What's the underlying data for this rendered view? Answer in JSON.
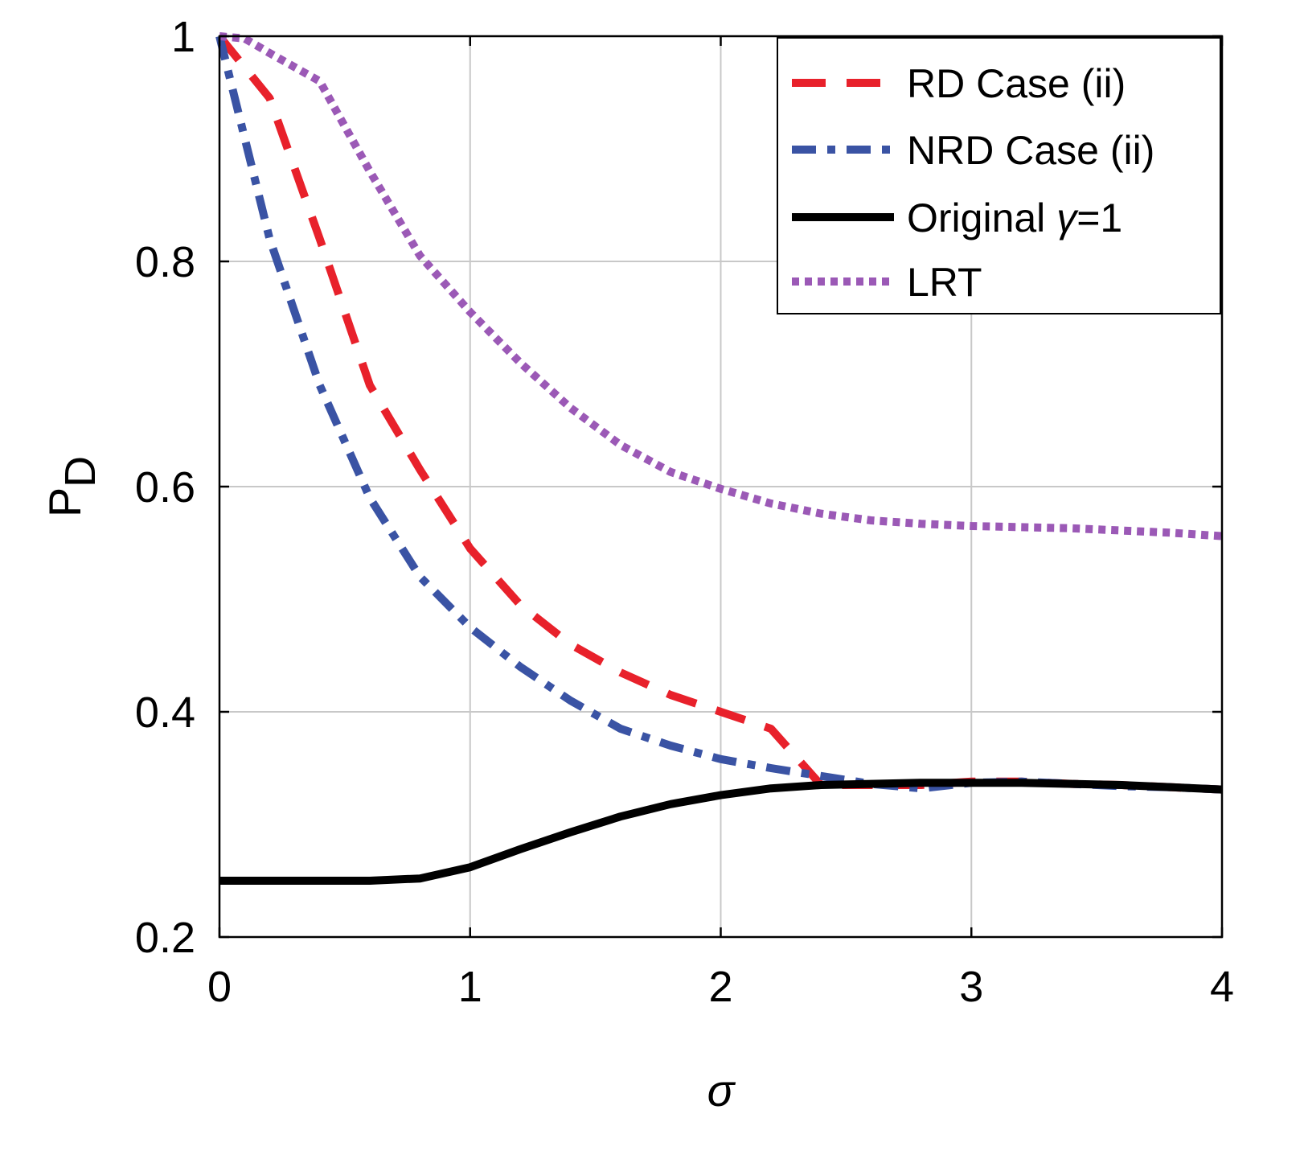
{
  "chart_data": {
    "type": "line",
    "title": "",
    "xlabel": "σ",
    "ylabel_main": "P",
    "ylabel_sub": "D",
    "xlim": [
      0,
      4
    ],
    "ylim": [
      0.2,
      1
    ],
    "xticks": [
      0,
      1,
      2,
      3,
      4
    ],
    "xtick_labels": [
      "0",
      "1",
      "2",
      "3",
      "4"
    ],
    "yticks": [
      0.2,
      0.4,
      0.6,
      0.8,
      1
    ],
    "ytick_labels": [
      "0.2",
      "0.4",
      "0.6",
      "0.8",
      "1"
    ],
    "grid": true,
    "legend_position": "top-right",
    "series": [
      {
        "name": "RD Case (ii)",
        "legend_main": "RD Case (ii)",
        "legend_symbol": "",
        "legend_suffix": "",
        "color": "#e8212b",
        "style": "dashed",
        "x": [
          0,
          0.2,
          0.4,
          0.6,
          0.8,
          1.0,
          1.2,
          1.4,
          1.6,
          1.8,
          2.0,
          2.2,
          2.4,
          2.6,
          2.8,
          3.0,
          3.2,
          3.4,
          3.6,
          3.8,
          4.0
        ],
        "y": [
          1.0,
          0.945,
          0.82,
          0.69,
          0.615,
          0.545,
          0.495,
          0.46,
          0.435,
          0.415,
          0.4,
          0.385,
          0.335,
          0.335,
          0.335,
          0.338,
          0.338,
          0.336,
          0.335,
          0.333,
          0.331
        ]
      },
      {
        "name": "NRD Case (ii)",
        "legend_main": "NRD Case (ii)",
        "legend_symbol": "",
        "legend_suffix": "",
        "color": "#3a53a4",
        "style": "dashdot",
        "x": [
          0,
          0.2,
          0.4,
          0.6,
          0.8,
          1.0,
          1.2,
          1.4,
          1.6,
          1.8,
          2.0,
          2.2,
          2.4,
          2.6,
          2.8,
          3.0,
          3.2,
          3.4,
          3.6,
          3.8,
          4.0
        ],
        "y": [
          1.0,
          0.82,
          0.69,
          0.59,
          0.52,
          0.475,
          0.44,
          0.41,
          0.385,
          0.37,
          0.358,
          0.35,
          0.343,
          0.336,
          0.332,
          0.337,
          0.338,
          0.336,
          0.334,
          0.333,
          0.331
        ]
      },
      {
        "name": "Original γ=1",
        "legend_main": "Original ",
        "legend_symbol": "γ",
        "legend_suffix": "=1",
        "color": "#000000",
        "style": "solid",
        "x": [
          0,
          0.2,
          0.4,
          0.6,
          0.8,
          1.0,
          1.2,
          1.4,
          1.6,
          1.8,
          2.0,
          2.2,
          2.4,
          2.6,
          2.8,
          3.0,
          3.2,
          3.4,
          3.6,
          3.8,
          4.0
        ],
        "y": [
          0.25,
          0.25,
          0.25,
          0.25,
          0.252,
          0.262,
          0.278,
          0.293,
          0.307,
          0.318,
          0.326,
          0.332,
          0.335,
          0.336,
          0.337,
          0.337,
          0.337,
          0.336,
          0.335,
          0.333,
          0.331
        ]
      },
      {
        "name": "LRT",
        "legend_main": "LRT",
        "legend_symbol": "",
        "legend_suffix": "",
        "color": "#9b59b6",
        "style": "dotted",
        "x": [
          0,
          0.1,
          0.2,
          0.4,
          0.6,
          0.8,
          1.0,
          1.2,
          1.4,
          1.6,
          1.8,
          2.0,
          2.2,
          2.4,
          2.6,
          2.8,
          3.0,
          3.2,
          3.4,
          3.6,
          3.8,
          4.0
        ],
        "y": [
          1.0,
          0.998,
          0.985,
          0.96,
          0.88,
          0.805,
          0.755,
          0.71,
          0.67,
          0.637,
          0.613,
          0.598,
          0.585,
          0.576,
          0.57,
          0.567,
          0.565,
          0.564,
          0.563,
          0.561,
          0.559,
          0.556
        ]
      }
    ]
  }
}
